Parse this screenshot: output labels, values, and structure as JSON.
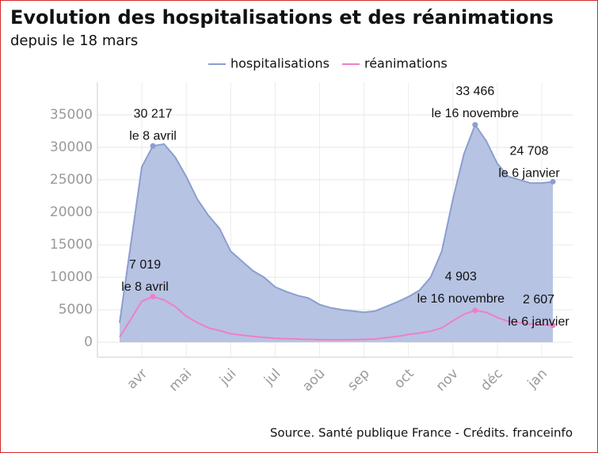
{
  "chart_data": {
    "type": "area-line",
    "title": "Evolution des hospitalisations et des réanimations",
    "subtitle": "depuis le 18 mars",
    "source": "Source. Santé publique France - Crédits. franceinfo",
    "categories": [
      null,
      null,
      "avr",
      null,
      null,
      null,
      "mai",
      null,
      null,
      null,
      "jui",
      null,
      null,
      null,
      "jul",
      null,
      null,
      null,
      "aoû",
      null,
      null,
      null,
      "sep",
      null,
      null,
      null,
      "oct",
      null,
      null,
      null,
      "nov",
      null,
      null,
      null,
      "déc",
      null,
      null,
      null,
      "jan",
      null
    ],
    "series": [
      {
        "name": "hospitalisations",
        "color": "#8a9fcf",
        "fill": "#b7c3e3",
        "values": [
          3000,
          15000,
          27000,
          30217,
          30500,
          28500,
          25500,
          22000,
          19500,
          17500,
          14000,
          12500,
          11000,
          10000,
          8500,
          7800,
          7200,
          6800,
          5800,
          5300,
          5000,
          4800,
          4600,
          4800,
          5500,
          6200,
          7000,
          8000,
          10000,
          14000,
          22000,
          29000,
          33466,
          31000,
          27500,
          25500,
          25000,
          24500,
          24500,
          24708
        ]
      },
      {
        "name": "réanimations",
        "color": "#ee7fc6",
        "values": [
          800,
          3500,
          6300,
          7019,
          6500,
          5500,
          4000,
          3000,
          2200,
          1800,
          1300,
          1100,
          900,
          750,
          600,
          550,
          500,
          450,
          400,
          380,
          380,
          400,
          450,
          500,
          700,
          900,
          1200,
          1400,
          1700,
          2200,
          3300,
          4300,
          4903,
          4600,
          3800,
          3200,
          3000,
          2800,
          2700,
          2607
        ]
      }
    ],
    "annotations": [
      {
        "value": "30 217",
        "date": "le 8 avril"
      },
      {
        "value": "33 466",
        "date": "le 16 novembre"
      },
      {
        "value": "24 708",
        "date": "le 6 janvier"
      },
      {
        "value": "7 019",
        "date": "le 8 avril"
      },
      {
        "value": "4 903",
        "date": "le 16 novembre"
      },
      {
        "value": "2 607",
        "date": "le 6 janvier"
      }
    ],
    "ylim": [
      -2300,
      40000
    ],
    "yticks": [
      0,
      5000,
      10000,
      15000,
      20000,
      25000,
      30000,
      35000
    ],
    "grid": true,
    "legend": "top"
  }
}
